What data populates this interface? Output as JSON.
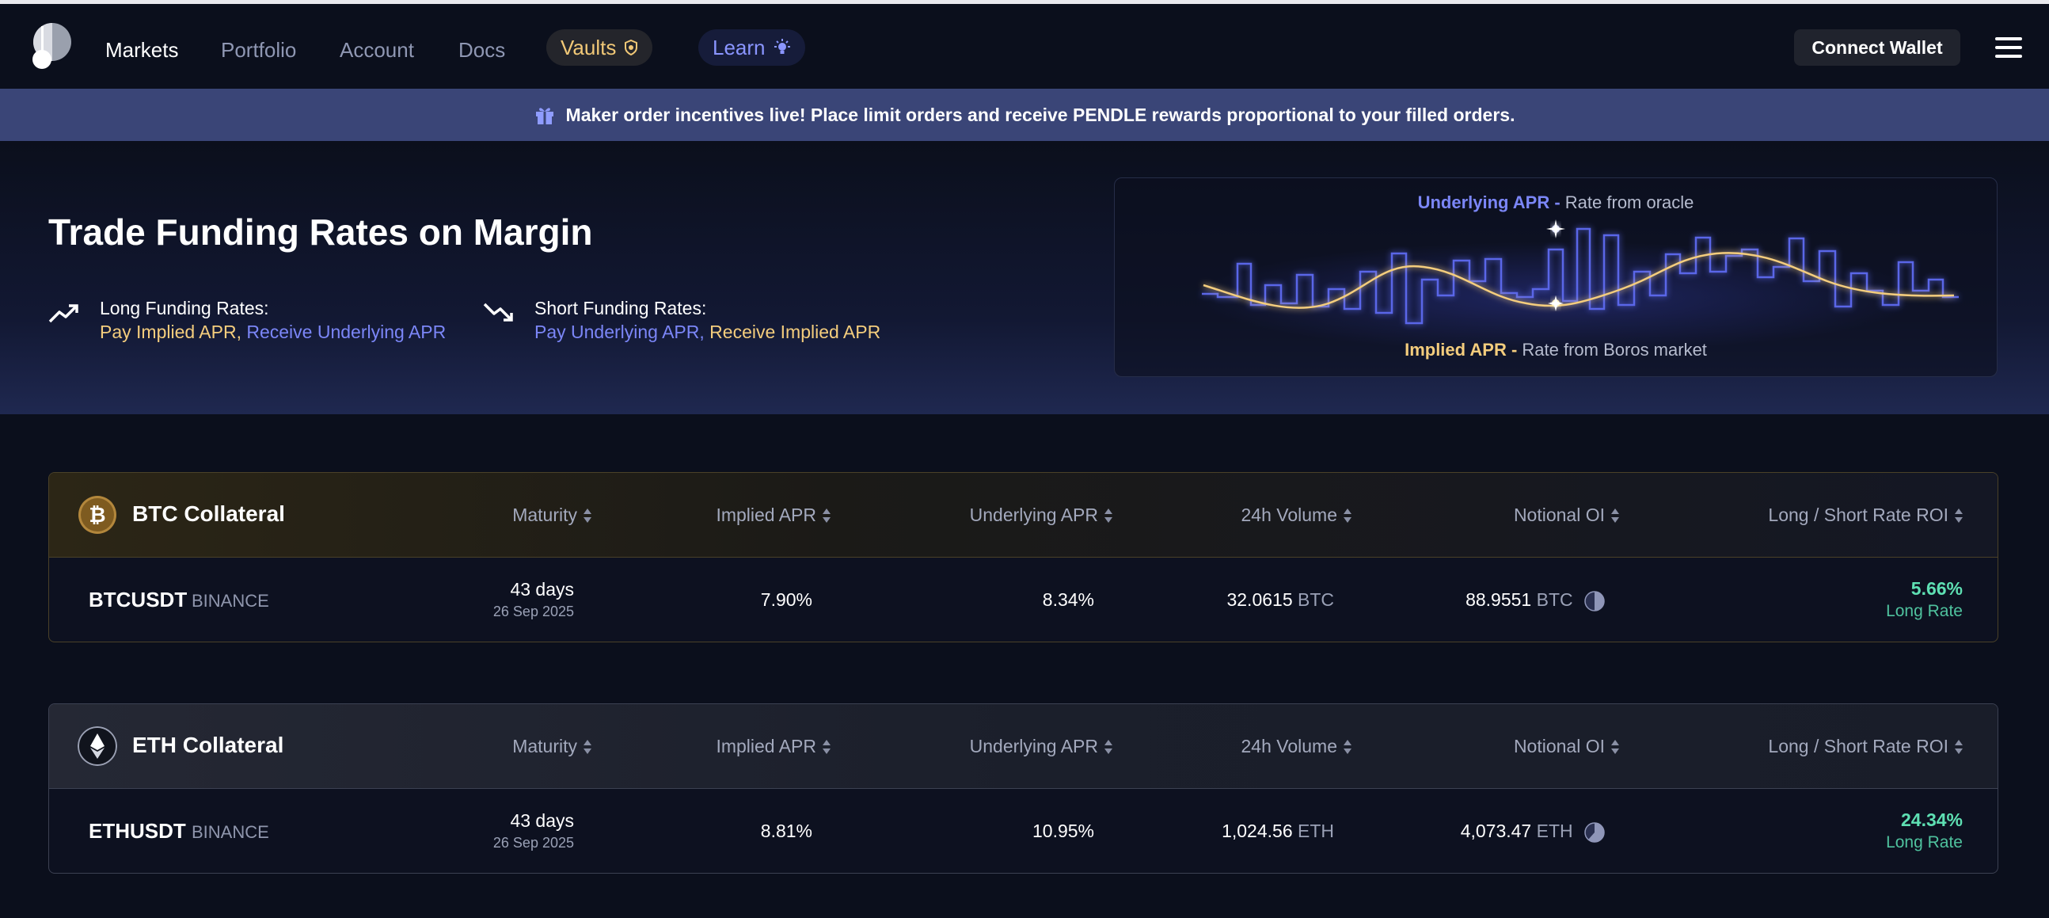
{
  "nav": {
    "links": [
      "Markets",
      "Portfolio",
      "Account",
      "Docs"
    ],
    "vaults_label": "Vaults",
    "learn_label": "Learn",
    "connect_label": "Connect Wallet"
  },
  "banner": {
    "text": "Maker order incentives live! Place limit orders and receive PENDLE rewards proportional to your filled orders."
  },
  "hero": {
    "title": "Trade Funding Rates on Margin",
    "long": {
      "label": "Long Funding Rates:",
      "pay": "Pay Implied APR,",
      "receive": "Receive Underlying APR"
    },
    "short": {
      "label": "Short Funding Rates:",
      "pay": "Pay Underlying APR,",
      "receive": "Receive Implied APR"
    },
    "chart": {
      "top_key": "Underlying APR -",
      "top_desc": "Rate from oracle",
      "bottom_key": "Implied APR -",
      "bottom_desc": "Rate from Boros market"
    }
  },
  "table_headers": {
    "maturity": "Maturity",
    "implied": "Implied APR",
    "underlying": "Underlying APR",
    "volume": "24h Volume",
    "oi": "Notional OI",
    "roi": "Long / Short Rate ROI"
  },
  "markets": [
    {
      "collateral": "BTC Collateral",
      "ticker": "BTCUSDT",
      "exchange": "BINANCE",
      "maturity_days": "43 days",
      "maturity_date": "26 Sep 2025",
      "implied_apr": "7.90%",
      "underlying_apr": "8.34%",
      "volume": "32.0615",
      "volume_unit": "BTC",
      "oi": "88.9551",
      "oi_unit": "BTC",
      "oi_fill": 0.5,
      "roi": "5.66%",
      "roi_label": "Long Rate"
    },
    {
      "collateral": "ETH Collateral",
      "ticker": "ETHUSDT",
      "exchange": "BINANCE",
      "maturity_days": "43 days",
      "maturity_date": "26 Sep 2025",
      "implied_apr": "8.81%",
      "underlying_apr": "10.95%",
      "volume": "1,024.56",
      "volume_unit": "ETH",
      "oi": "4,073.47",
      "oi_unit": "ETH",
      "oi_fill": 0.6,
      "roi": "24.34%",
      "roi_label": "Long Rate"
    }
  ],
  "colors": {
    "implied": "#f4cd7d",
    "underlying": "#7b86f7",
    "positive": "#5ee0b3"
  }
}
